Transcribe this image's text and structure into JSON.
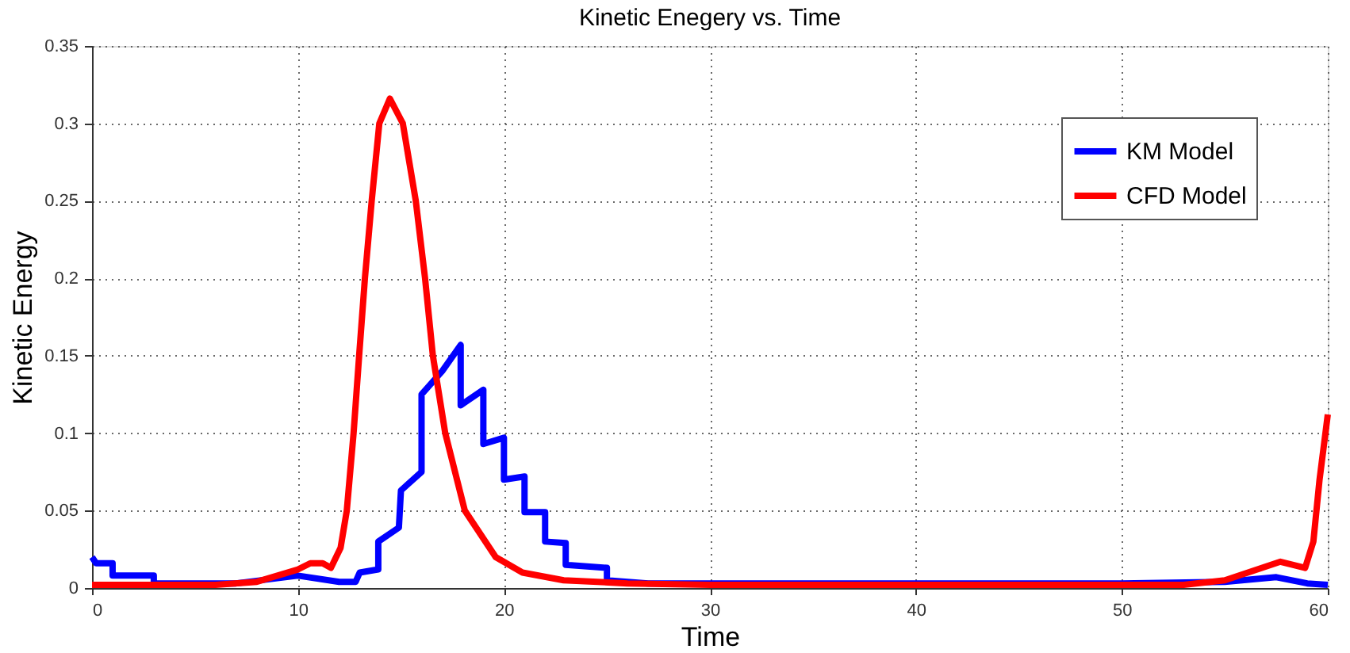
{
  "chart_data": {
    "type": "line",
    "title": "Kinetic Enegery vs. Time",
    "xlabel": "Time",
    "ylabel": "Kinetic Energy",
    "xlim": [
      0,
      60
    ],
    "xticks": [
      0,
      10,
      20,
      30,
      40,
      50,
      60
    ],
    "ylim": [
      0,
      0.35
    ],
    "yticks": [
      0,
      0.05,
      0.1,
      0.15,
      0.2,
      0.25,
      0.3,
      0.35
    ],
    "grid": true,
    "legend": "top right",
    "line_style": "solid",
    "marker": "none",
    "series": [
      {
        "name": "KM Model",
        "color": "#0000ff",
        "x": [
          0,
          0.2,
          1,
          1,
          3,
          3,
          7,
          10,
          12,
          12.8,
          13,
          13.9,
          13.9,
          14.9,
          15,
          16,
          16,
          17,
          17.9,
          17.9,
          19,
          19,
          20,
          20,
          21,
          21,
          22,
          22,
          23,
          23,
          25,
          25,
          27,
          30,
          40,
          50,
          55,
          57.5,
          59,
          60
        ],
        "values": [
          0.02,
          0.016,
          0.016,
          0.008,
          0.008,
          0.003,
          0.003,
          0.008,
          0.004,
          0.004,
          0.01,
          0.012,
          0.03,
          0.039,
          0.063,
          0.075,
          0.125,
          0.14,
          0.157,
          0.118,
          0.128,
          0.093,
          0.097,
          0.07,
          0.072,
          0.049,
          0.049,
          0.03,
          0.029,
          0.015,
          0.013,
          0.005,
          0.003,
          0.003,
          0.003,
          0.003,
          0.004,
          0.007,
          0.003,
          0.002
        ]
      },
      {
        "name": "CFD Model",
        "color": "#ff0000",
        "x": [
          0,
          6,
          8,
          9,
          10,
          10.6,
          11.2,
          11.6,
          12.07,
          12.37,
          12.7,
          12.97,
          13.25,
          13.58,
          13.95,
          14.46,
          15.09,
          15.72,
          16.17,
          16.55,
          17.15,
          18.1,
          19.6,
          20.9,
          22.9,
          26,
          30,
          40,
          50,
          53,
          55,
          57.7,
          58.9,
          59.3,
          59.6,
          60
        ],
        "values": [
          0.002,
          0.002,
          0.004,
          0.008,
          0.012,
          0.016,
          0.016,
          0.013,
          0.026,
          0.05,
          0.1,
          0.15,
          0.2,
          0.25,
          0.3,
          0.316,
          0.3,
          0.25,
          0.2,
          0.15,
          0.1,
          0.05,
          0.02,
          0.01,
          0.005,
          0.003,
          0.002,
          0.002,
          0.002,
          0.002,
          0.005,
          0.017,
          0.013,
          0.03,
          0.07,
          0.112
        ]
      }
    ]
  }
}
